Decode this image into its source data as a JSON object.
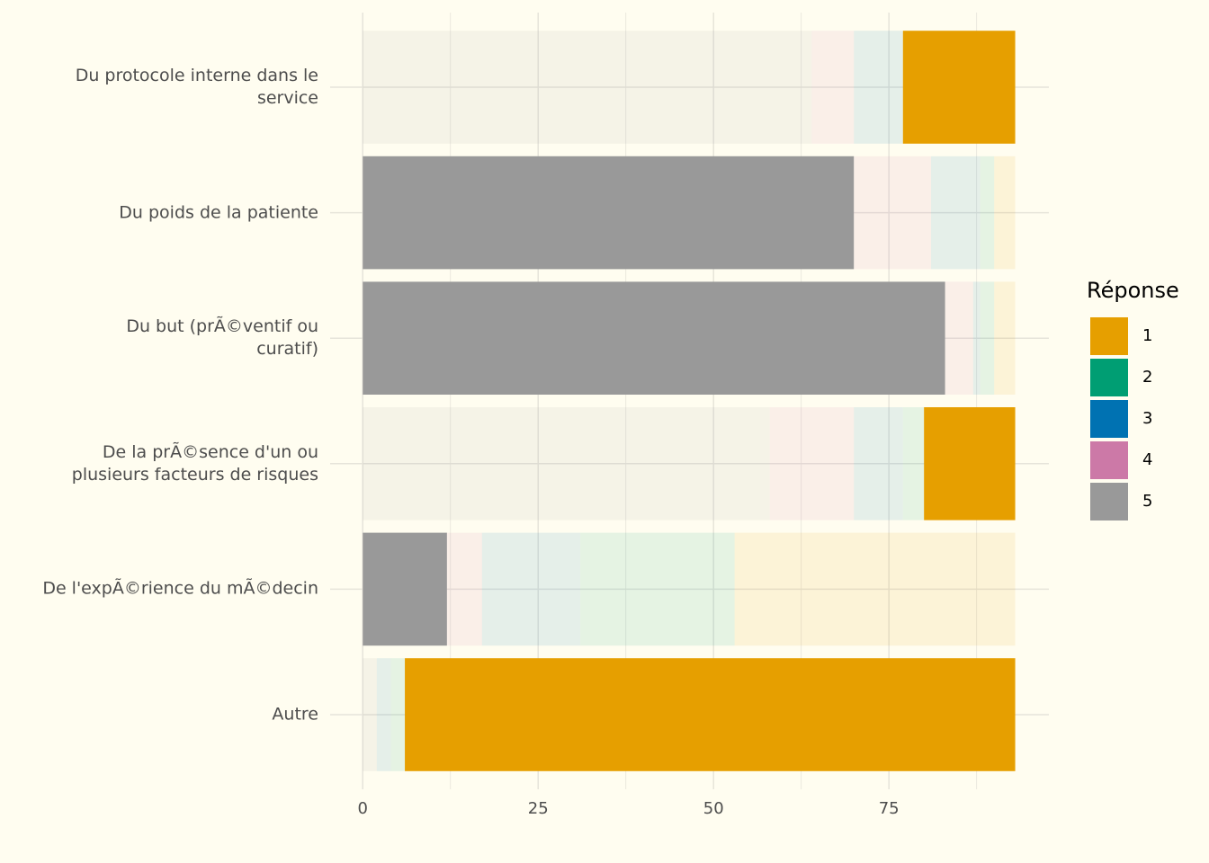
{
  "chart_data": {
    "type": "stacked_bar_horizontal",
    "categories": [
      "Du protocole interne dans le\nservice",
      "Du poids de la patiente",
      "Du but (prÃ©ventif ou\ncuratif)",
      "De la prÃ©sence d'un ou\nplusieurs facteurs de risques",
      "De l'expÃ©rience du mÃ©decin",
      "Autre"
    ],
    "series": [
      {
        "name": "1",
        "color": "#E69F00",
        "values": [
          16,
          3,
          3,
          13,
          40,
          87
        ]
      },
      {
        "name": "2",
        "color": "#009E73",
        "values": [
          0,
          2,
          2,
          3,
          22,
          2
        ]
      },
      {
        "name": "3",
        "color": "#0072B2",
        "values": [
          7,
          7,
          1,
          7,
          14,
          2
        ]
      },
      {
        "name": "4",
        "color": "#CC79A7",
        "values": [
          6,
          11,
          4,
          12,
          5,
          0
        ]
      },
      {
        "name": "5",
        "color": "#999999",
        "values": [
          64,
          70,
          83,
          58,
          12,
          2
        ]
      }
    ],
    "highlight": [
      "1",
      "5",
      "5",
      "1",
      "5",
      "1"
    ],
    "faded_opacity": 0.1,
    "legend_title": "Réponse",
    "legend_position": "right",
    "xlim": [
      -4.65,
      97.8
    ],
    "xticks": [
      0,
      25,
      50,
      75
    ],
    "minor_xticks": [
      12.5,
      37.5,
      62.5,
      87.5
    ],
    "grid": true
  }
}
